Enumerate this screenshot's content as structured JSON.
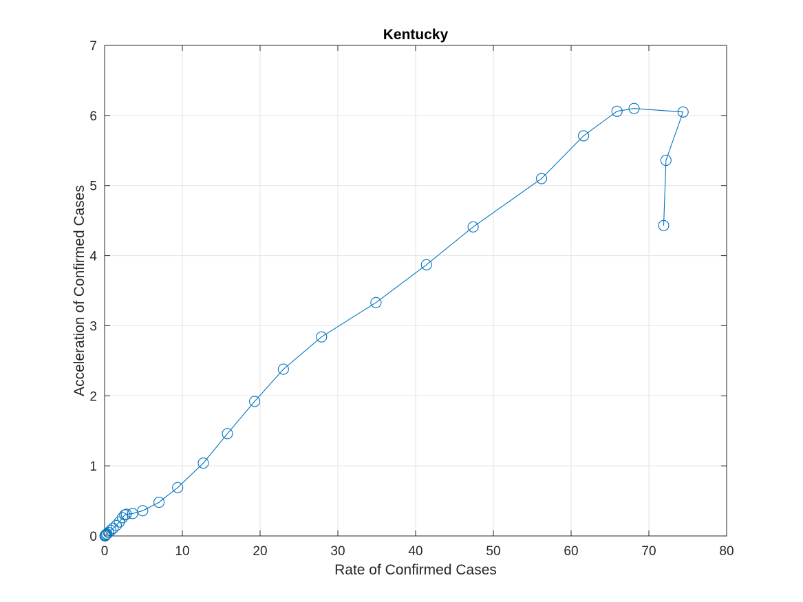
{
  "chart_data": {
    "type": "line",
    "title": "Kentucky",
    "xlabel": "Rate of Confirmed Cases",
    "ylabel": "Acceleration of Confirmed Cases",
    "xlim": [
      0,
      80
    ],
    "ylim": [
      0,
      7
    ],
    "xticks": [
      0,
      10,
      20,
      30,
      40,
      50,
      60,
      70,
      80
    ],
    "yticks": [
      0,
      1,
      2,
      3,
      4,
      5,
      6,
      7
    ],
    "grid": true,
    "marker": "circle",
    "series": [
      {
        "color": "#0072BD",
        "x": [
          0.05,
          0.1,
          0.2,
          0.3,
          0.5,
          0.8,
          1.1,
          1.5,
          1.9,
          2.3,
          2.6,
          2.8,
          3.6,
          4.9,
          7.0,
          9.4,
          12.7,
          15.8,
          19.3,
          23.0,
          27.9,
          34.9,
          41.4,
          47.4,
          56.2,
          61.6,
          65.9,
          68.1,
          74.4,
          72.2,
          71.9
        ],
        "y": [
          0.0,
          0.01,
          0.02,
          0.03,
          0.05,
          0.08,
          0.11,
          0.15,
          0.2,
          0.26,
          0.3,
          0.31,
          0.32,
          0.36,
          0.48,
          0.69,
          1.04,
          1.46,
          1.92,
          2.38,
          2.84,
          3.33,
          3.87,
          4.41,
          5.1,
          5.71,
          6.06,
          6.1,
          6.05,
          5.36,
          4.43
        ]
      }
    ]
  }
}
